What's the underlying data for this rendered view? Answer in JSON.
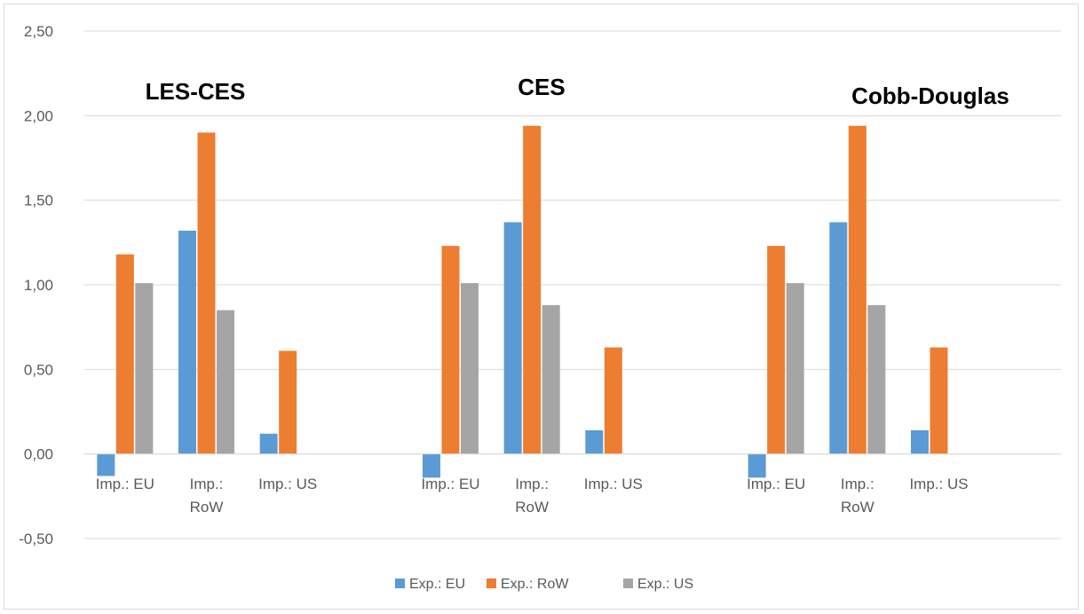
{
  "chart_data": {
    "type": "bar",
    "title": "",
    "xlabel": "",
    "ylabel": "",
    "ylim": [
      -0.5,
      2.5
    ],
    "y_ticks": [
      "-0,50",
      "0,00",
      "0,50",
      "1,00",
      "1,50",
      "2,00",
      "2,50"
    ],
    "y_tick_values": [
      -0.5,
      0,
      0.5,
      1.0,
      1.5,
      2.0,
      2.5
    ],
    "grid": true,
    "legend_position": "bottom",
    "colors": {
      "Exp.: EU": "#5b9bd5",
      "Exp.: RoW": "#ed7d31",
      "Exp.: US": "#a5a5a5"
    },
    "groups": [
      {
        "annotation": "LES-CES",
        "categories": [
          [
            "Imp.: EU"
          ],
          [
            "Imp.:",
            "RoW"
          ],
          [
            "Imp.: US"
          ]
        ],
        "series": [
          {
            "name": "Exp.: EU",
            "values": [
              -0.13,
              1.32,
              0.12
            ]
          },
          {
            "name": "Exp.: RoW",
            "values": [
              1.18,
              1.9,
              0.61
            ]
          },
          {
            "name": "Exp.: US",
            "values": [
              1.01,
              0.85,
              0.0
            ]
          }
        ]
      },
      {
        "annotation": "CES",
        "categories": [
          [
            "Imp.: EU"
          ],
          [
            "Imp.:",
            "RoW"
          ],
          [
            "Imp.: US"
          ]
        ],
        "series": [
          {
            "name": "Exp.: EU",
            "values": [
              -0.14,
              1.37,
              0.14
            ]
          },
          {
            "name": "Exp.: RoW",
            "values": [
              1.23,
              1.94,
              0.63
            ]
          },
          {
            "name": "Exp.: US",
            "values": [
              1.01,
              0.88,
              0.0
            ]
          }
        ]
      },
      {
        "annotation": "Cobb-Douglas",
        "categories": [
          [
            "Imp.: EU"
          ],
          [
            "Imp.:",
            "RoW"
          ],
          [
            "Imp.: US"
          ]
        ],
        "series": [
          {
            "name": "Exp.: EU",
            "values": [
              -0.14,
              1.37,
              0.14
            ]
          },
          {
            "name": "Exp.: RoW",
            "values": [
              1.23,
              1.94,
              0.63
            ]
          },
          {
            "name": "Exp.: US",
            "values": [
              1.01,
              0.88,
              0.0
            ]
          }
        ]
      }
    ],
    "legend": [
      "Exp.: EU",
      "Exp.: RoW",
      "Exp.: US"
    ]
  }
}
